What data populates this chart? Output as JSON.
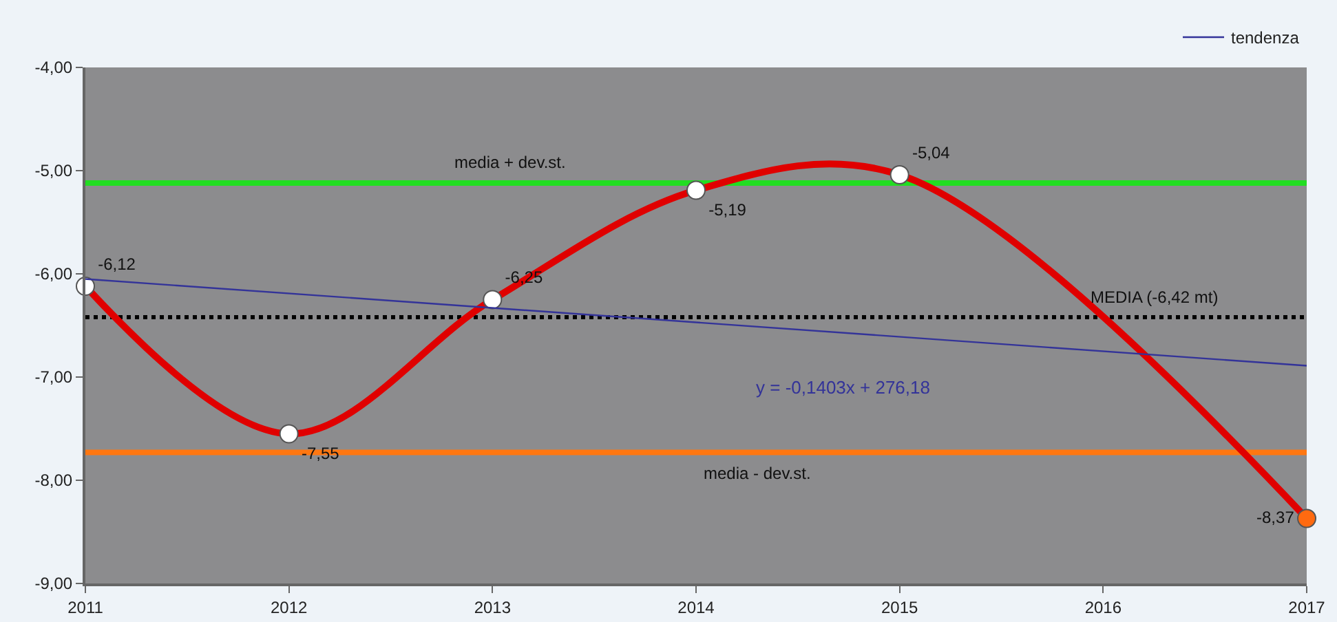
{
  "chart_data": {
    "type": "line",
    "xlim": [
      2011,
      2017
    ],
    "xticks": [
      2011,
      2012,
      2013,
      2014,
      2015,
      2016,
      2017
    ],
    "ylim": [
      -9,
      -4
    ],
    "yticks": [
      {
        "value": -9,
        "label": "-9,00"
      },
      {
        "value": -8,
        "label": "-8,00"
      },
      {
        "value": -7,
        "label": "-7,00"
      },
      {
        "value": -6,
        "label": "-6,00"
      },
      {
        "value": -5,
        "label": "-5,00"
      },
      {
        "value": -4,
        "label": "-4,00"
      }
    ],
    "grid": false,
    "legend": "top right",
    "marker": "circle",
    "series": [
      {
        "color": "#e00000",
        "x": [
          2011,
          2012,
          2013,
          2014,
          2015,
          2017
        ],
        "values": [
          -6.12,
          -7.55,
          -6.25,
          -5.19,
          -5.04,
          -8.37
        ],
        "colors": [
          "#ffffff",
          "#ffffff",
          "#ffffff",
          "#ffffff",
          "#ffffff",
          "#ff6a10"
        ],
        "value_labels": [
          "-6,12",
          "-7,55",
          "-6,25",
          "-5,19",
          "-5,04",
          "-8,37"
        ]
      },
      {
        "type": "line",
        "name": "tendenza",
        "color": "#333399",
        "marker": "none",
        "x": [
          2011,
          2017
        ],
        "values": [
          -6.05,
          -6.89
        ]
      }
    ],
    "ref_lines": [
      {
        "axis": "y",
        "value": -5.12,
        "label": "media + dev.st.",
        "color": "#22dd22",
        "line_style": "solid"
      },
      {
        "axis": "y",
        "value": -6.42,
        "label": "MEDIA (-6,42 mt)",
        "color": "#000000",
        "line_style": "dotted"
      },
      {
        "axis": "y",
        "value": -7.73,
        "label": "media - dev.st.",
        "color": "#ff7711",
        "line_style": "solid"
      }
    ],
    "annotations": [
      "y = -0,1403x + 276,18"
    ]
  }
}
